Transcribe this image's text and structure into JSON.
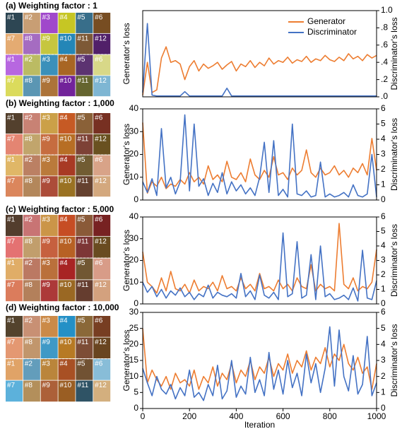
{
  "chart_data": [
    {
      "type": "line",
      "title": "(a) Weighting factor : 1",
      "ylabel": "Generator's loss",
      "y2label": "Discriminator's loss",
      "legend": "upper right",
      "tiles": [
        "#1",
        "#2",
        "#3",
        "#4",
        "#5",
        "#6",
        "#7",
        "#8",
        "#9",
        "#10",
        "#11",
        "#12",
        "#1",
        "#2",
        "#3",
        "#4",
        "#5",
        "#6",
        "#7",
        "#8",
        "#9",
        "#10",
        "#11",
        "#12"
      ],
      "xlim": [
        0,
        1000
      ],
      "x": [
        0,
        20,
        40,
        60,
        80,
        100,
        120,
        140,
        160,
        180,
        200,
        220,
        240,
        260,
        280,
        300,
        320,
        340,
        360,
        380,
        400,
        420,
        440,
        460,
        480,
        500,
        520,
        540,
        560,
        580,
        600,
        620,
        640,
        660,
        680,
        700,
        720,
        740,
        760,
        780,
        800,
        820,
        840,
        860,
        880,
        900,
        920,
        940,
        960,
        980,
        1000
      ],
      "y2lim": [
        0,
        1
      ],
      "y2ticks": [
        {
          "value": 0,
          "label": ".0"
        },
        {
          "value": 0.2,
          "label": ".2"
        },
        {
          "value": 0.4,
          "label": ".4"
        },
        {
          "value": 0.6,
          "label": ".6"
        },
        {
          "value": 0.8,
          "label": ".8"
        },
        {
          "value": 1,
          "label": "1.0"
        }
      ],
      "series": [
        {
          "name": "Generator",
          "color": "#ed7d31",
          "axis": "y2",
          "values": [
            0.02,
            0.4,
            0.05,
            0.08,
            0.45,
            0.58,
            0.4,
            0.42,
            0.38,
            0.2,
            0.35,
            0.42,
            0.3,
            0.38,
            0.33,
            0.36,
            0.4,
            0.32,
            0.37,
            0.41,
            0.3,
            0.38,
            0.35,
            0.42,
            0.34,
            0.4,
            0.36,
            0.45,
            0.38,
            0.42,
            0.4,
            0.46,
            0.39,
            0.43,
            0.41,
            0.47,
            0.4,
            0.44,
            0.42,
            0.48,
            0.43,
            0.41,
            0.46,
            0.42,
            0.5,
            0.44,
            0.47,
            0.42,
            0.49,
            0.45,
            0.48
          ]
        },
        {
          "name": "Discriminator",
          "color": "#4472c4",
          "axis": "y2",
          "values": [
            0.05,
            0.85,
            0.02,
            0.01,
            0.01,
            0.01,
            0.01,
            0.01,
            0.01,
            0.06,
            0.01,
            0.01,
            0.01,
            0.01,
            0.01,
            0.01,
            0.01,
            0.01,
            0.1,
            0.01,
            0.01,
            0.01,
            0.01,
            0.01,
            0.01,
            0.01,
            0.01,
            0.01,
            0.01,
            0.01,
            0.01,
            0.01,
            0.01,
            0.01,
            0.01,
            0.01,
            0.01,
            0.01,
            0.01,
            0.01,
            0.01,
            0.01,
            0.01,
            0.01,
            0.01,
            0.01,
            0.01,
            0.01,
            0.01,
            0.01,
            0.01
          ]
        }
      ]
    },
    {
      "type": "line",
      "title": "(b) Weighting factor : 1,000",
      "ylabel": "Generator's loss",
      "y2label": "Discriminator's loss",
      "tiles": [
        "#1",
        "#2",
        "#3",
        "#4",
        "#5",
        "#6",
        "#7",
        "#8",
        "#9",
        "#10",
        "#11",
        "#12",
        "#1",
        "#2",
        "#3",
        "#4",
        "#5",
        "#6",
        "#7",
        "#8",
        "#9",
        "#10",
        "#11",
        "#12"
      ],
      "xlim": [
        0,
        1000
      ],
      "x": [
        0,
        20,
        40,
        60,
        80,
        100,
        120,
        140,
        160,
        180,
        200,
        220,
        240,
        260,
        280,
        300,
        320,
        340,
        360,
        380,
        400,
        420,
        440,
        460,
        480,
        500,
        520,
        540,
        560,
        580,
        600,
        620,
        640,
        660,
        680,
        700,
        720,
        740,
        760,
        780,
        800,
        820,
        840,
        860,
        880,
        900,
        920,
        940,
        960,
        980,
        1000
      ],
      "ylim": [
        0,
        40
      ],
      "yticks": [
        0,
        10,
        20,
        30,
        40
      ],
      "y2lim": [
        0,
        6
      ],
      "y2ticks": [
        0,
        1,
        2,
        3,
        4,
        5,
        6
      ],
      "series": [
        {
          "name": "Generator",
          "color": "#ed7d31",
          "values": [
            34,
            3,
            8,
            6,
            10,
            5,
            7,
            6,
            9,
            7,
            12,
            8,
            10,
            7,
            15,
            9,
            11,
            8,
            17,
            10,
            9,
            12,
            8,
            18,
            11,
            9,
            13,
            10,
            19,
            11,
            12,
            9,
            14,
            11,
            13,
            22,
            12,
            10,
            14,
            11,
            12,
            15,
            11,
            13,
            10,
            14,
            12,
            16,
            11,
            27,
            13
          ]
        },
        {
          "name": "Discriminator",
          "color": "#4472c4",
          "axis": "y2",
          "values": [
            1.2,
            0.5,
            1.4,
            0.3,
            4.7,
            0.8,
            1.5,
            0.4,
            1.2,
            5.6,
            0.6,
            5.0,
            0.9,
            1.4,
            0.3,
            1.1,
            0.5,
            1.8,
            0.4,
            1.2,
            0.6,
            1.0,
            0.4,
            0.8,
            0.3,
            1.5,
            3.8,
            0.5,
            3.9,
            0.3,
            0.7,
            0.2,
            5.0,
            0.4,
            0.3,
            0.6,
            0.2,
            0.3,
            2.5,
            0.2,
            0.4,
            0.2,
            0.3,
            0.5,
            0.2,
            1.0,
            0.3,
            0.2,
            0.4,
            3.0,
            0.2
          ]
        }
      ]
    },
    {
      "type": "line",
      "title": "(c) Weighting factor : 5,000",
      "ylabel": "Generator's loss",
      "y2label": "Discriminator's loss",
      "tiles": [
        "#1",
        "#2",
        "#3",
        "#4",
        "#5",
        "#6",
        "#7",
        "#8",
        "#9",
        "#10",
        "#11",
        "#12",
        "#1",
        "#2",
        "#3",
        "#4",
        "#5",
        "#6",
        "#7",
        "#8",
        "#9",
        "#10",
        "#11",
        "#12"
      ],
      "xlim": [
        0,
        1000
      ],
      "x": [
        0,
        20,
        40,
        60,
        80,
        100,
        120,
        140,
        160,
        180,
        200,
        220,
        240,
        260,
        280,
        300,
        320,
        340,
        360,
        380,
        400,
        420,
        440,
        460,
        480,
        500,
        520,
        540,
        560,
        580,
        600,
        620,
        640,
        660,
        680,
        700,
        720,
        740,
        760,
        780,
        800,
        820,
        840,
        860,
        880,
        900,
        920,
        940,
        960,
        980,
        1000
      ],
      "ylim": [
        0,
        40
      ],
      "yticks": [
        0,
        10,
        20,
        30,
        40
      ],
      "y2lim": [
        0,
        6
      ],
      "y2ticks": [
        0,
        1,
        2,
        3,
        4,
        5,
        6
      ],
      "series": [
        {
          "name": "Generator",
          "color": "#ed7d31",
          "values": [
            24,
            10,
            8,
            5,
            12,
            6,
            15,
            7,
            6,
            9,
            5,
            11,
            6,
            8,
            7,
            10,
            6,
            13,
            7,
            8,
            6,
            12,
            7,
            9,
            6,
            14,
            7,
            8,
            6,
            11,
            7,
            9,
            6,
            12,
            8,
            7,
            18,
            6,
            9,
            7,
            8,
            6,
            37,
            9,
            7,
            12,
            6,
            8,
            7,
            10,
            25
          ]
        },
        {
          "name": "Discriminator",
          "color": "#4472c4",
          "axis": "y2",
          "values": [
            1.5,
            0.8,
            1.2,
            0.5,
            1.0,
            0.4,
            0.9,
            0.6,
            1.1,
            0.5,
            0.8,
            0.3,
            0.7,
            0.5,
            1.3,
            0.4,
            0.8,
            0.6,
            0.5,
            0.7,
            0.4,
            2.1,
            0.5,
            0.9,
            0.3,
            2.0,
            0.6,
            0.4,
            0.8,
            0.3,
            4.9,
            0.5,
            0.7,
            4.3,
            0.4,
            0.6,
            3.4,
            0.3,
            4.0,
            0.5,
            0.7,
            0.3,
            0.4,
            0.6,
            0.3,
            1.1,
            0.2,
            3.7,
            0.4,
            0.3,
            1.6
          ]
        }
      ]
    },
    {
      "type": "line",
      "title": "(d) Weighting factor : 10,000",
      "ylabel": "Generator's loss",
      "y2label": "Discriminator's loss",
      "xlabel": "Iteration",
      "tiles": [
        "#1",
        "#2",
        "#3",
        "#4",
        "#5",
        "#6",
        "#7",
        "#8",
        "#9",
        "#10",
        "#11",
        "#12",
        "#1",
        "#2",
        "#3",
        "#4",
        "#5",
        "#6",
        "#7",
        "#8",
        "#9",
        "#10",
        "#11",
        "#12"
      ],
      "xlim": [
        0,
        1000
      ],
      "xticks": [
        0,
        200,
        400,
        600,
        800,
        1000
      ],
      "x": [
        0,
        20,
        40,
        60,
        80,
        100,
        120,
        140,
        160,
        180,
        200,
        220,
        240,
        260,
        280,
        300,
        320,
        340,
        360,
        380,
        400,
        420,
        440,
        460,
        480,
        500,
        520,
        540,
        560,
        580,
        600,
        620,
        640,
        660,
        680,
        700,
        720,
        740,
        760,
        780,
        800,
        820,
        840,
        860,
        880,
        900,
        920,
        940,
        960,
        980,
        1000
      ],
      "ylim": [
        0,
        30
      ],
      "yticks": [
        0,
        5,
        10,
        15,
        20,
        25,
        30
      ],
      "y2lim": [
        0,
        6
      ],
      "y2ticks": [
        0,
        1,
        2,
        3,
        4,
        5,
        6
      ],
      "series": [
        {
          "name": "Generator",
          "color": "#ed7d31",
          "values": [
            25,
            8,
            12,
            9,
            7,
            10,
            6,
            11,
            8,
            9,
            7,
            12,
            6,
            10,
            8,
            13,
            7,
            11,
            9,
            14,
            8,
            12,
            10,
            15,
            9,
            13,
            11,
            16,
            10,
            14,
            12,
            17,
            11,
            15,
            13,
            18,
            12,
            16,
            14,
            19,
            13,
            17,
            15,
            20,
            14,
            12,
            16,
            11,
            13,
            6,
            14
          ]
        },
        {
          "name": "Discriminator",
          "color": "#4472c4",
          "axis": "y2",
          "values": [
            2.5,
            1.6,
            0.8,
            2.0,
            1.2,
            0.9,
            1.5,
            0.6,
            1.3,
            0.8,
            2.4,
            0.7,
            1.0,
            0.5,
            1.5,
            0.8,
            2.7,
            0.6,
            1.1,
            3.0,
            0.7,
            1.4,
            0.9,
            3.2,
            1.0,
            1.8,
            0.8,
            3.5,
            1.2,
            2.4,
            0.9,
            3.0,
            1.3,
            2.2,
            0.8,
            3.4,
            1.6,
            2.8,
            1.0,
            2.5,
            5.1,
            1.4,
            4.9,
            2.0,
            1.1,
            3.3,
            0.9,
            1.5,
            4.5,
            0.8,
            1.6
          ]
        }
      ]
    }
  ]
}
